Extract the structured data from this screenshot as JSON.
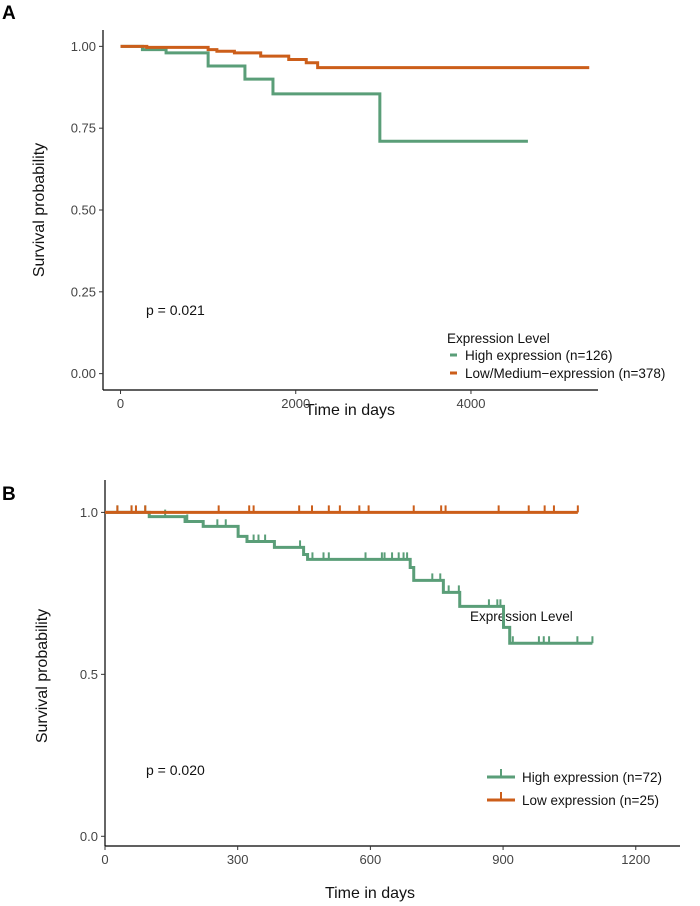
{
  "colors": {
    "high": "#5a9e78",
    "low": "#cc5e1a"
  },
  "chart_data": [
    {
      "type": "line",
      "subtype": "kaplan-meier",
      "panel": "A",
      "xlabel": "Time in days",
      "ylabel": "Survival probability",
      "xlim": [
        -200,
        5450
      ],
      "ylim": [
        -0.05,
        1.05
      ],
      "xticks": [
        {
          "v": 0,
          "label": "0"
        },
        {
          "v": 2000,
          "label": "2000"
        },
        {
          "v": 4000,
          "label": "4000"
        }
      ],
      "yticks": [
        {
          "v": 0,
          "label": "0.00"
        },
        {
          "v": 0.25,
          "label": "0.25"
        },
        {
          "v": 0.5,
          "label": "0.50"
        },
        {
          "v": 0.75,
          "label": "0.75"
        },
        {
          "v": 1,
          "label": "1.00"
        }
      ],
      "annotation": "p = 0.021",
      "legend_title": "Expression Level",
      "legend_position": "bottom-right",
      "series": [
        {
          "name": "High expression (n=126)",
          "color_key": "high",
          "steps": [
            [
              0,
              1.0
            ],
            [
              250,
              0.99
            ],
            [
              520,
              0.98
            ],
            [
              1000,
              0.94
            ],
            [
              1420,
              0.9
            ],
            [
              1740,
              0.855
            ],
            [
              2960,
              0.71
            ]
          ],
          "end": 4650
        },
        {
          "name": "Low/Medium−expression (n=378)",
          "color_key": "low",
          "steps": [
            [
              0,
              1.0
            ],
            [
              300,
              0.997
            ],
            [
              1000,
              0.99
            ],
            [
              1100,
              0.985
            ],
            [
              1300,
              0.98
            ],
            [
              1600,
              0.97
            ],
            [
              1920,
              0.96
            ],
            [
              2120,
              0.95
            ],
            [
              2250,
              0.935
            ]
          ],
          "end": 5350
        }
      ]
    },
    {
      "type": "line",
      "subtype": "kaplan-meier",
      "panel": "B",
      "xlabel": "Time in days",
      "ylabel": "Survival probability",
      "xlim": [
        0,
        1300
      ],
      "ylim": [
        -0.03,
        1.1
      ],
      "xticks": [
        {
          "v": 0,
          "label": "0"
        },
        {
          "v": 300,
          "label": "300"
        },
        {
          "v": 600,
          "label": "600"
        },
        {
          "v": 900,
          "label": "900"
        },
        {
          "v": 1200,
          "label": "1200"
        }
      ],
      "yticks": [
        {
          "v": 0,
          "label": "0.0"
        },
        {
          "v": 0.5,
          "label": "0.5"
        },
        {
          "v": 1,
          "label": "1.0"
        }
      ],
      "annotation": "p = 0.020",
      "legend_title": "Expression Level",
      "legend_position": "bottom-right",
      "series": [
        {
          "name": "High expression (n=72)",
          "color_key": "high",
          "steps": [
            [
              0,
              1.0
            ],
            [
              100,
              0.987
            ],
            [
              181,
              0.972
            ],
            [
              222,
              0.957
            ],
            [
              301,
              0.926
            ],
            [
              321,
              0.91
            ],
            [
              383,
              0.892
            ],
            [
              449,
              0.87
            ],
            [
              458,
              0.855
            ],
            [
              690,
              0.83
            ],
            [
              698,
              0.79
            ],
            [
              765,
              0.753
            ],
            [
              802,
              0.71
            ],
            [
              901,
              0.645
            ],
            [
              915,
              0.596
            ]
          ],
          "end": 1102,
          "censored": [
            28,
            60,
            91,
            136,
            186,
            254,
            273,
            336,
            347,
            362,
            441,
            469,
            494,
            506,
            589,
            626,
            632,
            649,
            664,
            675,
            683,
            740,
            758,
            777,
            800,
            868,
            887,
            894,
            922,
            981,
            992,
            1004,
            1068,
            1102
          ]
        },
        {
          "name": "Low expression (n=25)",
          "color_key": "low",
          "steps": [
            [
              0,
              1.0
            ]
          ],
          "end": 1069,
          "censored": [
            28,
            60,
            70,
            91,
            257,
            326,
            336,
            439,
            468,
            506,
            531,
            575,
            596,
            698,
            760,
            770,
            890,
            958,
            994,
            1015,
            1069
          ]
        }
      ]
    }
  ]
}
